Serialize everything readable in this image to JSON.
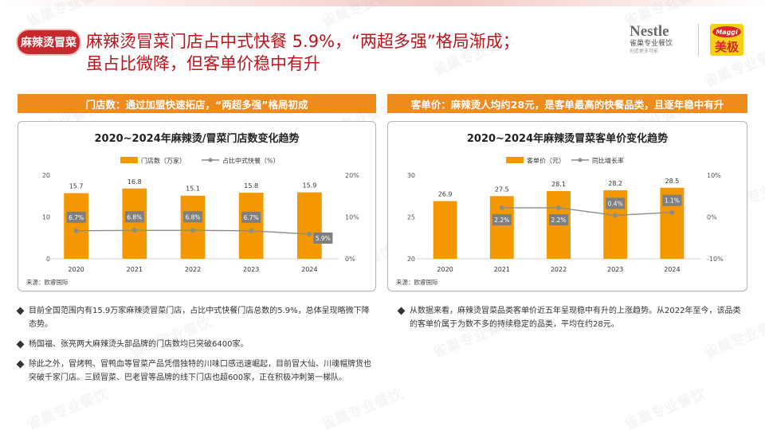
{
  "header": {
    "tag": "麻辣烫冒菜",
    "headline_line1": "麻辣烫冒菜门店占中式快餐 5.9%，“两超多强”格局渐成；",
    "headline_line2": "虽占比微降，但客单价稳中有升"
  },
  "logos": {
    "nestle_word": "Nestle",
    "nestle_cn": "雀巢专业餐饮",
    "nestle_sub": "创造更多可能",
    "maggi_word": "Maggi",
    "maggi_cn": "美极"
  },
  "watermark": "雀巢专业餐饮",
  "left_panel": {
    "header": "门店数：通过加盟快速拓店，“两超多强”格局初成",
    "source": "来源：欧睿国际",
    "chart_data": {
      "type": "bar",
      "title": "2020~2024年麻辣烫/冒菜门店数变化趋势",
      "categories": [
        "2020",
        "2021",
        "2022",
        "2023",
        "2024"
      ],
      "series": [
        {
          "name": "门店数（万家）",
          "kind": "bar",
          "axis": "left",
          "values": [
            15.7,
            16.8,
            15.1,
            15.8,
            15.9
          ],
          "labels": [
            "15.7",
            "16.8",
            "15.1",
            "15.8",
            "15.9"
          ]
        },
        {
          "name": "占比中式快餐（%）",
          "kind": "line",
          "axis": "right",
          "values": [
            6.7,
            6.8,
            6.8,
            6.7,
            5.9
          ],
          "labels": [
            "6.7%",
            "6.8%",
            "6.8%",
            "6.7%",
            "5.9%"
          ]
        }
      ],
      "left_ticks": [
        "20",
        "10",
        "0"
      ],
      "right_ticks": [
        "20%",
        "10%",
        "0%"
      ],
      "ylim_left": [
        0,
        20
      ],
      "ylim_right": [
        0,
        20
      ],
      "legend": "top-center",
      "colors": {
        "bar": "#f39800",
        "line": "#8c8c8c",
        "label_box": "#7f7f7f"
      }
    }
  },
  "right_panel": {
    "header": "客单价：麻辣烫人均约28元，是客单最高的快餐品类，且逐年稳中有升",
    "source": "来源：欧睿国际",
    "chart_data": {
      "type": "bar",
      "title": "2020~2024年麻辣烫冒菜客单价变化趋势",
      "categories": [
        "2020",
        "2021",
        "2022",
        "2023",
        "2024"
      ],
      "series": [
        {
          "name": "客单价（元）",
          "kind": "bar",
          "axis": "left",
          "values": [
            26.9,
            27.5,
            28.1,
            28.2,
            28.5
          ],
          "labels": [
            "26.9",
            "27.5",
            "28.1",
            "28.2",
            "28.5"
          ]
        },
        {
          "name": "同比增长率",
          "kind": "line",
          "axis": "right",
          "values": [
            null,
            2.2,
            2.2,
            0.4,
            1.1
          ],
          "labels": [
            "",
            "2.2%",
            "2.2%",
            "0.4%",
            "1.1%"
          ]
        }
      ],
      "left_ticks": [
        "30",
        "25",
        "20"
      ],
      "right_ticks": [
        "10%",
        "0%",
        "-10%"
      ],
      "ylim_left": [
        20,
        30
      ],
      "ylim_right": [
        -10,
        10
      ],
      "legend": "top-center",
      "colors": {
        "bar": "#f39800",
        "line": "#8c8c8c",
        "label_box": "#7f7f7f"
      }
    }
  },
  "bullets_left": [
    "目前全国范围内有15.9万家麻辣烫冒菜门店，占比中式快餐门店总数的5.9%，总体呈现略微下降态势。",
    "杨国福、张亮两大麻辣烫头部品牌的门店数均已突破6400家。",
    "除此之外，冒烤鸭、冒鸭血等冒菜产品凭借独特的川味口感迅速崛起，目前冒大仙、川魂帽牌货也突破千家门店。三顾冒菜、巴老冒等品牌的线下门店也超600家，正在积极冲刺第一梯队。"
  ],
  "bullets_right": [
    "从数据来看，麻辣烫冒菜品类客单价近五年呈现稳中有升的上涨趋势。从2022年至今，该品类的客单价属于为数不多的持续稳定的品类，平均在约28元。"
  ]
}
